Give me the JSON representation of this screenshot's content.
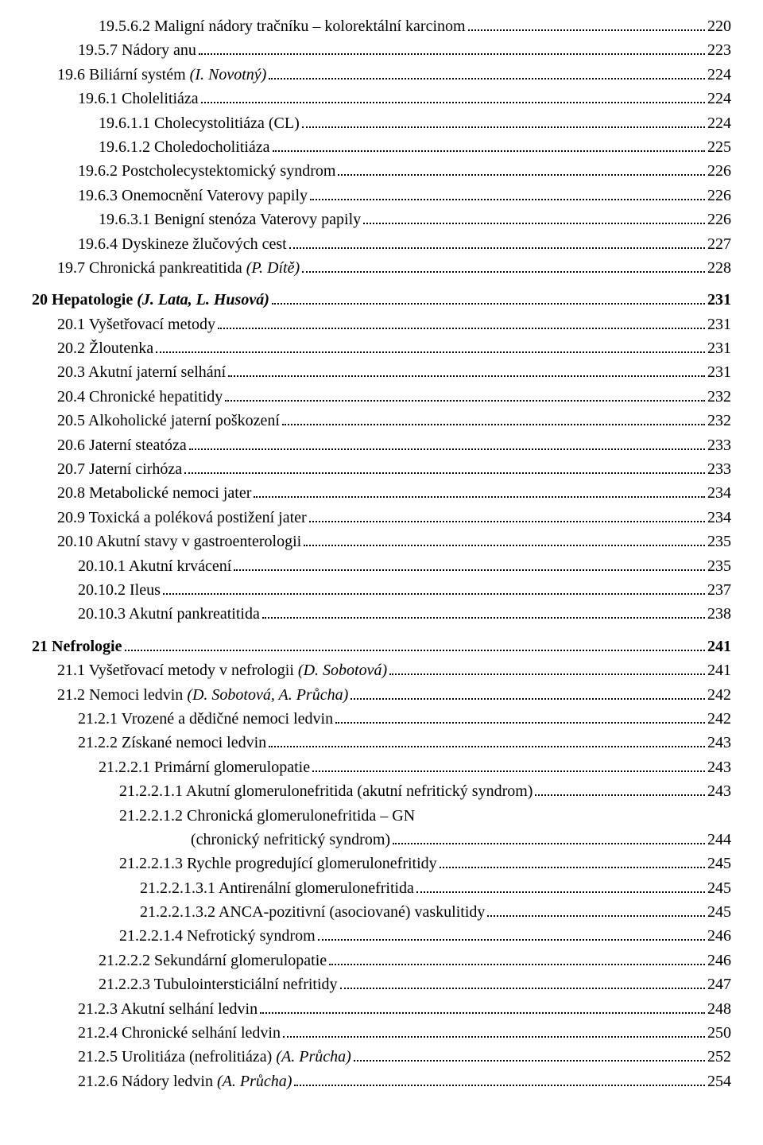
{
  "entries": [
    {
      "indent": 2,
      "text": "19.5.6.2  Maligní nádory tračníku – kolorektální karcinom",
      "page": "220"
    },
    {
      "indent": 1,
      "text": "19.5.7  Nádory anu",
      "page": "223"
    },
    {
      "indent": 0,
      "text": "19.6  Biliární systém ",
      "italicSuffix": "(I. Novotný)",
      "page": "224"
    },
    {
      "indent": 1,
      "text": "19.6.1  Cholelitiáza",
      "page": "224"
    },
    {
      "indent": 2,
      "text": "19.6.1.1  Cholecystolitiáza (CL)",
      "page": "224"
    },
    {
      "indent": 2,
      "text": "19.6.1.2  Choledocholitiáza",
      "page": "225"
    },
    {
      "indent": 1,
      "text": "19.6.2  Postcholecystektomický syndrom",
      "page": "226"
    },
    {
      "indent": 1,
      "text": "19.6.3  Onemocnění Vaterovy papily",
      "page": "226"
    },
    {
      "indent": 2,
      "text": "19.6.3.1  Benigní stenóza Vaterovy papily",
      "page": "226"
    },
    {
      "indent": 1,
      "text": "19.6.4  Dyskineze žlučových cest",
      "page": "227"
    },
    {
      "indent": 0,
      "text": "19.7  Chronická pankreatitida ",
      "italicSuffix": "(P. Dítě)",
      "page": "228"
    },
    {
      "indent": -1,
      "bold": true,
      "gap": true,
      "text": "20  Hepatologie ",
      "italicSuffix": "(J. Lata, L. Husová)",
      "page": "231"
    },
    {
      "indent": 0,
      "text": "20.1  Vyšetřovací metody",
      "page": "231"
    },
    {
      "indent": 0,
      "text": "20.2  Žloutenka",
      "page": "231"
    },
    {
      "indent": 0,
      "text": "20.3  Akutní jaterní selhání",
      "page": "231"
    },
    {
      "indent": 0,
      "text": "20.4  Chronické hepatitidy",
      "page": "232"
    },
    {
      "indent": 0,
      "text": "20.5  Alkoholické jaterní poškození",
      "page": "232"
    },
    {
      "indent": 0,
      "text": "20.6  Jaterní steatóza",
      "page": "233"
    },
    {
      "indent": 0,
      "text": "20.7  Jaterní cirhóza",
      "page": "233"
    },
    {
      "indent": 0,
      "text": "20.8  Metabolické nemoci jater",
      "page": "234"
    },
    {
      "indent": 0,
      "text": "20.9  Toxická a poléková postižení jater",
      "page": "234"
    },
    {
      "indent": 0,
      "text": "20.10  Akutní stavy v gastroenterologii",
      "page": "235"
    },
    {
      "indent": 1,
      "text": "20.10.1  Akutní krvácení",
      "page": "235"
    },
    {
      "indent": 1,
      "text": "20.10.2  Ileus",
      "page": "237"
    },
    {
      "indent": 1,
      "text": "20.10.3  Akutní pankreatitida",
      "page": "238"
    },
    {
      "indent": -1,
      "bold": true,
      "gap": true,
      "text": "21  Nefrologie",
      "page": "241"
    },
    {
      "indent": 0,
      "text": "21.1  Vyšetřovací metody v nefrologii ",
      "italicSuffix": "(D. Sobotová)",
      "page": "241"
    },
    {
      "indent": 0,
      "text": "21.2  Nemoci ledvin ",
      "italicSuffix": "(D. Sobotová, A. Průcha)",
      "page": "242"
    },
    {
      "indent": 1,
      "text": "21.2.1  Vrozené a dědičné nemoci ledvin",
      "page": "242"
    },
    {
      "indent": 1,
      "text": "21.2.2  Získané nemoci ledvin",
      "page": "243"
    },
    {
      "indent": 2,
      "text": "21.2.2.1  Primární glomerulopatie",
      "page": "243"
    },
    {
      "indent": 3,
      "text": "21.2.2.1.1  Akutní glomerulonefritida (akutní nefritický syndrom)",
      "page": "243",
      "tightDots": true
    },
    {
      "indent": 3,
      "text": "21.2.2.1.2  Chronická glomerulonefritida – GN",
      "noPage": true,
      "noDotsRow": true
    },
    {
      "indent": 3,
      "continuation": true,
      "text": "(chronický nefritický syndrom)",
      "page": "244"
    },
    {
      "indent": 3,
      "text": "21.2.2.1.3  Rychle progredující glomerulonefritidy",
      "page": "245"
    },
    {
      "indent": 4,
      "text": "21.2.2.1.3.1  Antirenální glomerulonefritida",
      "page": "245"
    },
    {
      "indent": 4,
      "text": "21.2.2.1.3.2  ANCA-pozitivní (asociované) vaskulitidy",
      "page": "245"
    },
    {
      "indent": 3,
      "text": "21.2.2.1.4  Nefrotický syndrom",
      "page": "246"
    },
    {
      "indent": 2,
      "text": "21.2.2.2  Sekundární glomerulopatie",
      "page": "246"
    },
    {
      "indent": 2,
      "text": "21.2.2.3  Tubulointersticiální nefritidy",
      "page": "247"
    },
    {
      "indent": 1,
      "text": "21.2.3  Akutní selhání ledvin",
      "page": "248"
    },
    {
      "indent": 1,
      "text": "21.2.4  Chronické selhání ledvin",
      "page": "250"
    },
    {
      "indent": 1,
      "text": "21.2.5  Urolitiáza (nefrolitiáza) ",
      "italicSuffix": "(A. Průcha)",
      "page": "252"
    },
    {
      "indent": 1,
      "text": "21.2.6  Nádory ledvin ",
      "italicSuffix": "(A. Průcha)",
      "page": "254"
    }
  ]
}
